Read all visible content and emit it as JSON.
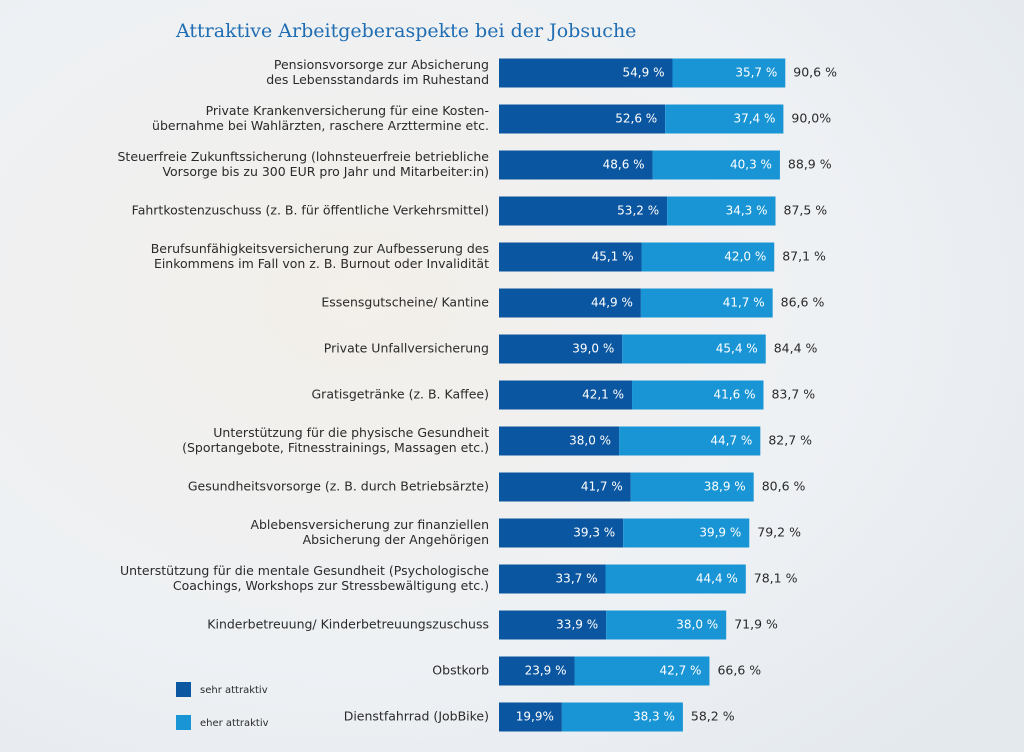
{
  "chart_data": {
    "type": "stacked-bar",
    "title": "Attraktive Arbeitgeberaspekte bei der Jobsuche",
    "categories": [
      [
        "Pensionsvorsorge zur Absicherung",
        "des Lebensstandards im Ruhestand"
      ],
      [
        "Private Krankenversicherung für eine Kosten-",
        "übernahme bei Wahlärzten, raschere Arzttermine etc."
      ],
      [
        "Steuerfreie Zukunftssicherung (lohnsteuerfreie betriebliche",
        "Vorsorge bis zu 300 EUR pro Jahr und Mitarbeiter:in)"
      ],
      [
        "Fahrtkostenzuschuss (z. B. für öffentliche Verkehrsmittel)"
      ],
      [
        "Berufsunfähigkeitsversicherung zur Aufbesserung des",
        "Einkommens im Fall von z. B. Burnout oder Invalidität"
      ],
      [
        "Essensgutscheine/ Kantine"
      ],
      [
        "Private Unfallversicherung"
      ],
      [
        "Gratisgetränke (z. B. Kaffee)"
      ],
      [
        "Unterstützung für die physische Gesundheit",
        "(Sportangebote, Fitnesstrainings, Massagen etc.)"
      ],
      [
        "Gesundheitsvorsorge (z. B. durch Betriebsärzte)"
      ],
      [
        "Ablebensversicherung zur finanziellen",
        "Absicherung der Angehörigen"
      ],
      [
        "Unterstützung für die mentale Gesundheit (Psychologische",
        "Coachings, Workshops zur Stressbewältigung etc.)"
      ],
      [
        "Kinderbetreuung/ Kinderbetreuungszuschuss"
      ],
      [
        "Obstkorb"
      ],
      [
        "Dienstfahrrad (JobBike)"
      ]
    ],
    "series": [
      {
        "name": "sehr attraktiv",
        "color": "#0b56a0",
        "values": [
          54.9,
          52.6,
          48.6,
          53.2,
          45.1,
          44.9,
          39.0,
          42.1,
          38.0,
          41.7,
          39.3,
          33.7,
          33.9,
          23.9,
          19.9
        ],
        "value_labels": [
          "54,9 %",
          "52,6 %",
          "48,6 %",
          "53,2 %",
          "45,1 %",
          "44,9 %",
          "39,0 %",
          "42,1 %",
          "38,0 %",
          "41,7 %",
          "39,3 %",
          "33,7 %",
          "33,9 %",
          "23,9 %",
          "19,9%"
        ]
      },
      {
        "name": "eher attraktiv",
        "color": "#1995d5",
        "values": [
          35.7,
          37.4,
          40.3,
          34.3,
          42.0,
          41.7,
          45.4,
          41.6,
          44.7,
          38.9,
          39.9,
          44.4,
          38.0,
          42.7,
          38.3
        ],
        "value_labels": [
          "35,7 %",
          "37,4 %",
          "40,3 %",
          "34,3 %",
          "42,0 %",
          "41,7 %",
          "45,4 %",
          "41,6 %",
          "44,7 %",
          "38,9 %",
          "39,9 %",
          "44,4 %",
          "38,0 %",
          "42,7 %",
          "38,3 %"
        ]
      }
    ],
    "totals": [
      90.6,
      90.0,
      88.9,
      87.5,
      87.1,
      86.6,
      84.4,
      83.7,
      82.7,
      80.6,
      79.2,
      78.1,
      71.9,
      66.6,
      58.2
    ],
    "total_labels": [
      "90,6 %",
      "90,0%",
      "88,9 %",
      "87,5 %",
      "87,1 %",
      "86,6 %",
      "84,4 %",
      "83,7 %",
      "82,7 %",
      "80,6 %",
      "79,2 %",
      "78,1 %",
      "71,9 %",
      "66,6 %",
      "58,2 %"
    ]
  }
}
